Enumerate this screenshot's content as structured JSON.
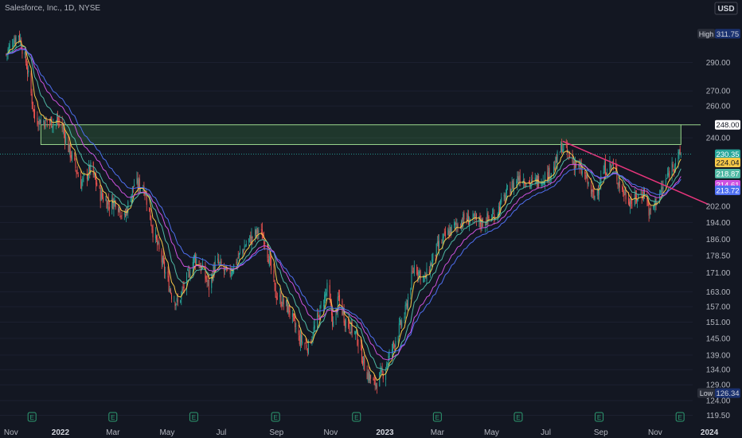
{
  "header": {
    "title": "Salesforce, Inc., 1D, NYSE",
    "currency": "USD"
  },
  "chart_data": {
    "type": "candlestick",
    "symbol": "Salesforce, Inc.",
    "interval": "1D",
    "exchange": "NYSE",
    "currency": "USD",
    "y_ticks": [
      290.0,
      270.0,
      260.0,
      240.0,
      202.0,
      194.0,
      186.0,
      178.5,
      171.0,
      163.0,
      157.0,
      151.0,
      145.0,
      139.0,
      134.0,
      129.0,
      124.0,
      119.5
    ],
    "ylim": [
      117,
      330
    ],
    "y_scale": "log",
    "x_ticks": [
      "Nov",
      "2022",
      "Mar",
      "May",
      "Jul",
      "Sep",
      "Nov",
      "2023",
      "Mar",
      "May",
      "Jul",
      "Sep",
      "Nov",
      "2024"
    ],
    "x_tick_bold": [
      "2022",
      "2023",
      "2024"
    ],
    "high": {
      "label": "High",
      "value": "311.75"
    },
    "low": {
      "label": "Low",
      "value": "126.34"
    },
    "earnings_marker": "E",
    "price_path": [
      [
        "2021-11-01",
        296
      ],
      [
        "2021-11-08",
        306
      ],
      [
        "2021-11-15",
        311.75
      ],
      [
        "2021-11-24",
        288
      ],
      [
        "2021-12-03",
        252
      ],
      [
        "2021-12-15",
        250
      ],
      [
        "2022-01-01",
        250
      ],
      [
        "2022-01-10",
        234
      ],
      [
        "2022-01-24",
        214
      ],
      [
        "2022-02-04",
        222
      ],
      [
        "2022-02-15",
        208
      ],
      [
        "2022-02-25",
        203
      ],
      [
        "2022-03-04",
        205
      ],
      [
        "2022-03-14",
        196
      ],
      [
        "2022-03-25",
        214
      ],
      [
        "2022-04-05",
        212
      ],
      [
        "2022-04-15",
        190
      ],
      [
        "2022-04-28",
        172
      ],
      [
        "2022-05-06",
        162
      ],
      [
        "2022-05-13",
        158
      ],
      [
        "2022-05-20",
        165
      ],
      [
        "2022-06-01",
        178
      ],
      [
        "2022-06-10",
        172
      ],
      [
        "2022-06-17",
        165
      ],
      [
        "2022-06-25",
        176
      ],
      [
        "2022-07-08",
        170
      ],
      [
        "2022-07-15",
        174
      ],
      [
        "2022-07-29",
        184
      ],
      [
        "2022-08-12",
        190
      ],
      [
        "2022-08-19",
        186
      ],
      [
        "2022-08-31",
        162
      ],
      [
        "2022-09-15",
        156
      ],
      [
        "2022-09-26",
        145
      ],
      [
        "2022-10-07",
        142
      ],
      [
        "2022-10-17",
        152
      ],
      [
        "2022-10-28",
        164
      ],
      [
        "2022-11-04",
        150
      ],
      [
        "2022-11-10",
        160
      ],
      [
        "2022-11-17",
        152
      ],
      [
        "2022-11-30",
        146
      ],
      [
        "2022-12-10",
        134
      ],
      [
        "2022-12-20",
        129
      ],
      [
        "2022-12-30",
        133
      ],
      [
        "2023-01-10",
        142
      ],
      [
        "2023-01-24",
        155
      ],
      [
        "2023-02-03",
        174
      ],
      [
        "2023-02-15",
        168
      ],
      [
        "2023-03-01",
        182
      ],
      [
        "2023-03-15",
        190
      ],
      [
        "2023-04-01",
        196
      ],
      [
        "2023-04-20",
        194
      ],
      [
        "2023-05-05",
        198
      ],
      [
        "2023-05-20",
        210
      ],
      [
        "2023-06-01",
        218
      ],
      [
        "2023-06-15",
        214
      ],
      [
        "2023-07-01",
        218
      ],
      [
        "2023-07-10",
        222
      ],
      [
        "2023-07-19",
        235
      ],
      [
        "2023-08-01",
        226
      ],
      [
        "2023-08-14",
        218
      ],
      [
        "2023-08-24",
        206
      ],
      [
        "2023-09-05",
        222
      ],
      [
        "2023-09-14",
        224
      ],
      [
        "2023-09-25",
        210
      ],
      [
        "2023-10-06",
        204
      ],
      [
        "2023-10-20",
        210
      ],
      [
        "2023-10-26",
        198
      ],
      [
        "2023-11-01",
        204
      ],
      [
        "2023-11-10",
        212
      ],
      [
        "2023-11-20",
        224
      ],
      [
        "2023-11-30",
        230.35
      ]
    ],
    "moving_averages": [
      {
        "color": "#f7c949",
        "last_value": "224.04",
        "span": 8
      },
      {
        "color": "#4fb8a4",
        "last_value": "218.87",
        "span": 18
      },
      {
        "color": "#cf52e0",
        "last_value": "214.61",
        "span": 32
      },
      {
        "color": "#4f6ff0",
        "last_value": "213.72",
        "span": 44
      }
    ],
    "last_price": {
      "value": "230.35",
      "color": "#26a69a"
    },
    "resistance_zone": {
      "y_low": 236,
      "y_high": 248,
      "x_start": "2021-12-10",
      "x_end": "2023-11-30",
      "label": "248.00"
    },
    "trendline": {
      "color": "#e8357c",
      "start": [
        "2023-07-20",
        238
      ],
      "end": [
        "2023-12-31",
        203
      ]
    }
  }
}
